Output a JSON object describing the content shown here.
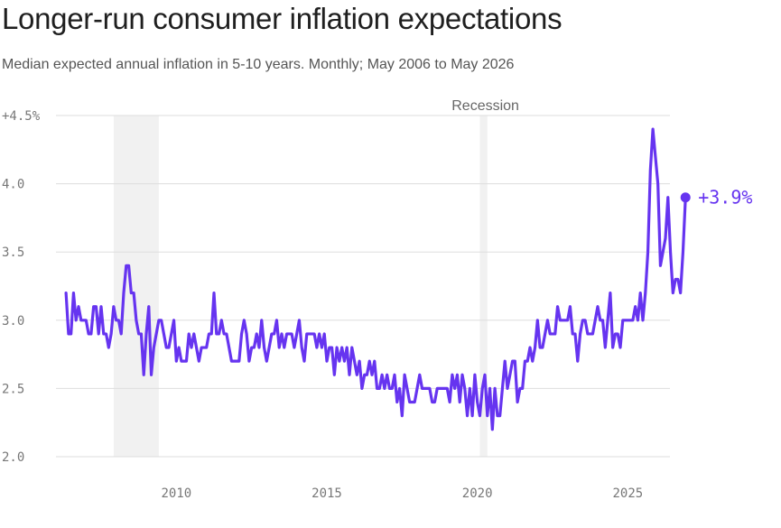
{
  "title": "Longer-run consumer inflation expectations",
  "subtitle": "Median expected annual inflation in 5-10 years. Monthly; May 2006 to May 2026",
  "colors": {
    "line": "#6634f0",
    "recession": "#f1f1f1",
    "grid": "#dddddd",
    "text": "#1f1f1f"
  },
  "chart_data": {
    "type": "line",
    "title": "Longer-run consumer inflation expectations",
    "subtitle": "Median expected annual inflation in 5-10 years. Monthly; May 2006 to May 2026",
    "xlabel": "",
    "ylabel": "",
    "xlim": [
      2006.0,
      2026.4
    ],
    "ylim": [
      2.0,
      4.5
    ],
    "grid": true,
    "legend": "none",
    "x_ticks": [
      {
        "value": 2010,
        "label": "2010"
      },
      {
        "value": 2015,
        "label": "2015"
      },
      {
        "value": 2020,
        "label": "2020"
      },
      {
        "value": 2025,
        "label": "2025"
      }
    ],
    "y_ticks": [
      {
        "value": 4.5,
        "label": "+4.5%"
      },
      {
        "value": 4.0,
        "label": "4.0"
      },
      {
        "value": 3.5,
        "label": "3.5"
      },
      {
        "value": 3.0,
        "label": "3.0"
      },
      {
        "value": 2.5,
        "label": "2.5"
      },
      {
        "value": 2.0,
        "label": "2.0"
      }
    ],
    "recessions": [
      {
        "start": 2007.917,
        "end": 2009.417
      },
      {
        "start": 2020.083,
        "end": 2020.333
      }
    ],
    "recession_label": "Recession",
    "end_label": "+3.9%",
    "start": "2006-05",
    "values": [
      3.2,
      2.9,
      2.9,
      3.2,
      3.0,
      3.1,
      3.0,
      3.0,
      3.0,
      2.9,
      2.9,
      3.1,
      3.1,
      2.9,
      3.1,
      2.9,
      2.9,
      2.8,
      2.9,
      3.1,
      3.0,
      3.0,
      2.9,
      3.2,
      3.4,
      3.4,
      3.2,
      3.2,
      3.0,
      2.9,
      2.9,
      2.6,
      2.9,
      3.1,
      2.6,
      2.8,
      2.9,
      3.0,
      3.0,
      2.9,
      2.8,
      2.8,
      2.9,
      3.0,
      2.7,
      2.8,
      2.7,
      2.7,
      2.7,
      2.9,
      2.8,
      2.9,
      2.8,
      2.7,
      2.8,
      2.8,
      2.8,
      2.9,
      2.9,
      3.2,
      2.9,
      2.9,
      3.0,
      2.9,
      2.9,
      2.8,
      2.7,
      2.7,
      2.7,
      2.7,
      2.9,
      3.0,
      2.9,
      2.7,
      2.8,
      2.8,
      2.9,
      2.8,
      3.0,
      2.8,
      2.7,
      2.8,
      2.9,
      2.9,
      3.0,
      2.8,
      2.9,
      2.8,
      2.9,
      2.9,
      2.9,
      2.8,
      2.9,
      3.0,
      2.8,
      2.7,
      2.9,
      2.9,
      2.9,
      2.9,
      2.8,
      2.9,
      2.8,
      2.9,
      2.7,
      2.8,
      2.8,
      2.6,
      2.8,
      2.7,
      2.8,
      2.7,
      2.8,
      2.6,
      2.8,
      2.7,
      2.6,
      2.7,
      2.5,
      2.6,
      2.6,
      2.7,
      2.6,
      2.7,
      2.5,
      2.5,
      2.6,
      2.5,
      2.6,
      2.5,
      2.5,
      2.6,
      2.4,
      2.5,
      2.3,
      2.6,
      2.5,
      2.4,
      2.4,
      2.4,
      2.5,
      2.6,
      2.5,
      2.5,
      2.5,
      2.5,
      2.4,
      2.4,
      2.5,
      2.5,
      2.5,
      2.5,
      2.5,
      2.4,
      2.6,
      2.5,
      2.6,
      2.4,
      2.6,
      2.5,
      2.3,
      2.5,
      2.3,
      2.6,
      2.4,
      2.3,
      2.5,
      2.6,
      2.3,
      2.5,
      2.2,
      2.5,
      2.3,
      2.3,
      2.5,
      2.7,
      2.5,
      2.6,
      2.7,
      2.7,
      2.4,
      2.5,
      2.5,
      2.7,
      2.7,
      2.8,
      2.7,
      2.8,
      3.0,
      2.8,
      2.8,
      2.9,
      3.0,
      2.9,
      2.9,
      2.9,
      3.1,
      3.0,
      3.0,
      3.0,
      3.0,
      3.1,
      2.9,
      2.9,
      2.7,
      2.9,
      3.0,
      3.0,
      2.9,
      2.9,
      2.9,
      3.0,
      3.1,
      3.0,
      3.0,
      2.8,
      3.0,
      3.2,
      2.8,
      2.9,
      2.9,
      2.8,
      3.0,
      3.0,
      3.0,
      3.0,
      3.0,
      3.1,
      3.0,
      3.2,
      3.0,
      3.2,
      3.5,
      4.1,
      4.4,
      4.2,
      4.0,
      3.4,
      3.5,
      3.6,
      3.9,
      3.5,
      3.2,
      3.3,
      3.3,
      3.2,
      3.5,
      3.9
    ]
  }
}
